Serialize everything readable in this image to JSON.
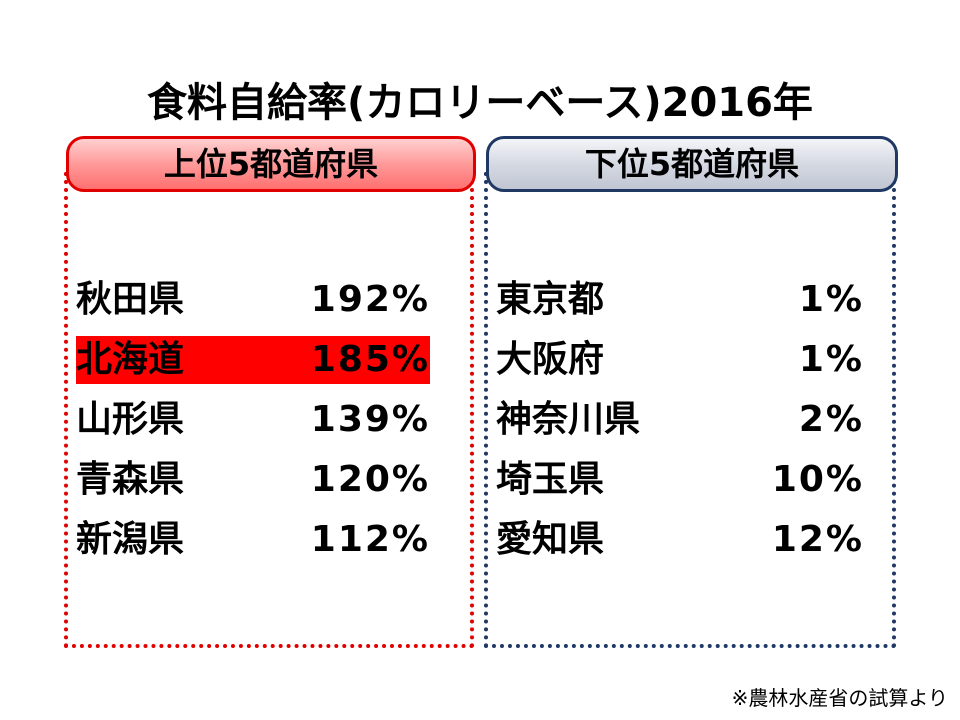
{
  "title": "食料自給率(カロリーベース)2016年",
  "top": {
    "header": "上位5都道府県",
    "rows": [
      [
        "秋田県",
        "192%"
      ],
      [
        "北海道",
        "185%"
      ],
      [
        "山形県",
        "139%"
      ],
      [
        "青森県",
        "120%"
      ],
      [
        "新潟県",
        "112%"
      ]
    ]
  },
  "bottom": {
    "header": "下位5都道府県",
    "rows": [
      [
        "東京都",
        "1%"
      ],
      [
        "大阪府",
        "1%"
      ],
      [
        "神奈川県",
        "2%"
      ],
      [
        "埼玉県",
        "10%"
      ],
      [
        "愛知県",
        "12%"
      ]
    ]
  },
  "note": "※農林水産省の試算より"
}
